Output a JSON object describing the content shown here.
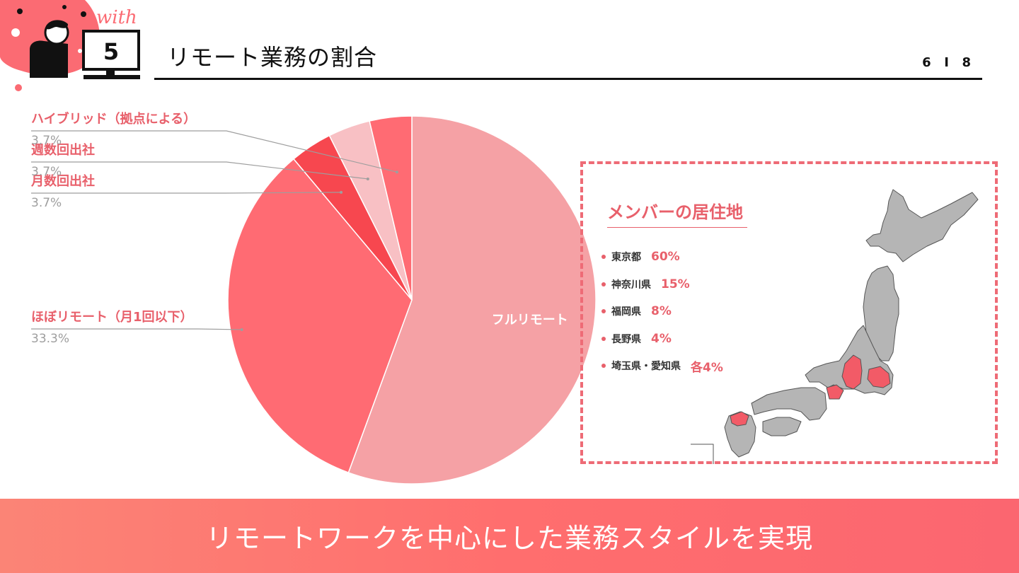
{
  "header": {
    "logo_word": "with",
    "logo_number": "5",
    "title": "リモート業務の割合",
    "page_current": "6",
    "page_total": "8"
  },
  "chart_data": {
    "type": "pie",
    "title": "",
    "slices": [
      {
        "label": "フルリモート",
        "value": 55.6,
        "color": "#f5a1a5",
        "value_label": ""
      },
      {
        "label": "ほぼリモート（月1回以下）",
        "value": 33.3,
        "color": "#ff6b73",
        "value_label": "33.3%"
      },
      {
        "label": "月数回出社",
        "value": 3.7,
        "color": "#f7474f",
        "value_label": "3.7%"
      },
      {
        "label": "週数回出社",
        "value": 3.7,
        "color": "#f8c0c4",
        "value_label": "3.7%"
      },
      {
        "label": "ハイブリッド（拠点による）",
        "value": 3.7,
        "color": "#ff6b73",
        "value_label": "3.7%"
      }
    ],
    "label_colors": {
      "category": "#e8606b",
      "value": "#9e9e9e",
      "leader": "#9e9e9e",
      "inside": "#ffffff"
    }
  },
  "residence": {
    "title": "メンバーの居住地",
    "items": [
      {
        "pref": "東京都",
        "pct": "60%"
      },
      {
        "pref": "神奈川県",
        "pct": "15%"
      },
      {
        "pref": "福岡県",
        "pct": "8%"
      },
      {
        "pref": "長野県",
        "pct": "4%"
      },
      {
        "pref": "埼玉県・愛知県",
        "pct": "各4%"
      }
    ],
    "map_colors": {
      "base": "#b5b5b5",
      "highlight": "#f25b67",
      "stroke": "#555555"
    }
  },
  "footer": {
    "text": "リモートワークを中心にした業務スタイルを実現"
  },
  "colors": {
    "accent": "#e8606b",
    "banner_start": "#fb8476",
    "banner_end": "#ff6e6e"
  }
}
